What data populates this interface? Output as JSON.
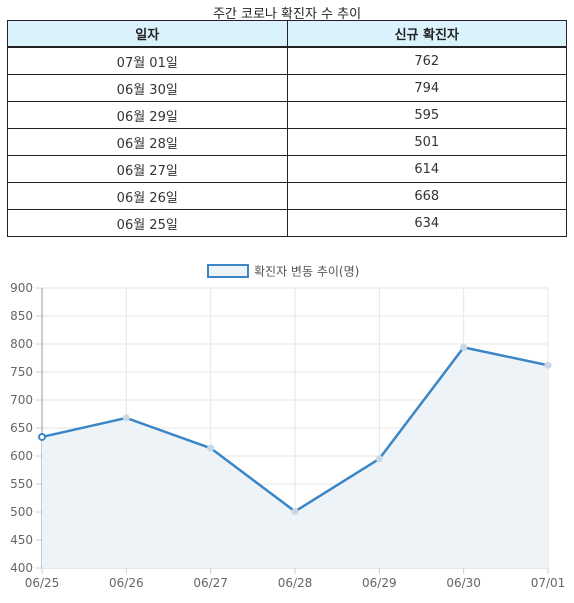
{
  "table": {
    "caption": "주간 코로나 확진자 수 추이",
    "headers": [
      "일자",
      "신규 확진자"
    ],
    "rows": [
      [
        "07월 01일",
        "762"
      ],
      [
        "06월 30일",
        "794"
      ],
      [
        "06월 29일",
        "595"
      ],
      [
        "06월 28일",
        "501"
      ],
      [
        "06월 27일",
        "614"
      ],
      [
        "06월 26일",
        "668"
      ],
      [
        "06월 25일",
        "634"
      ]
    ]
  },
  "chart_data": {
    "type": "line",
    "title": "",
    "xlabel": "",
    "ylabel": "",
    "legend_position": "top",
    "grid": true,
    "categories": [
      "06/25",
      "06/26",
      "06/27",
      "06/28",
      "06/29",
      "06/30",
      "07/01"
    ],
    "series": [
      {
        "name": "확진자 변동 추이(명)",
        "values": [
          634,
          668,
          614,
          501,
          595,
          794,
          762
        ],
        "color": "#3b86c6",
        "fill": "#eef3f8"
      }
    ],
    "ylim": [
      400,
      900
    ],
    "yticks": [
      400,
      450,
      500,
      550,
      600,
      650,
      700,
      750,
      800,
      850,
      900
    ]
  }
}
